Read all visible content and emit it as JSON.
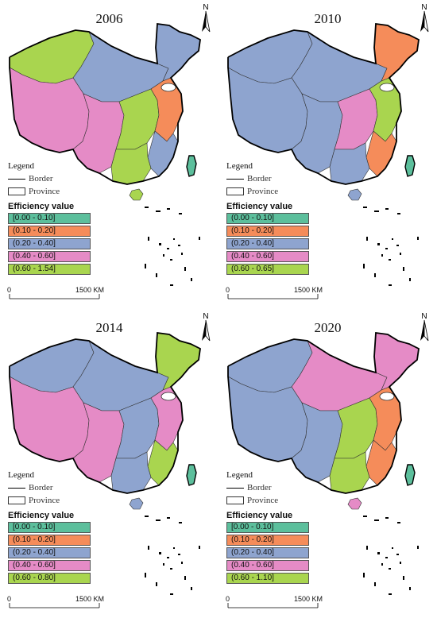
{
  "north_label": "N",
  "legend": {
    "title": "Legend",
    "border_label": "Border",
    "province_label": "Province"
  },
  "efficiency_title": "Efficiency value",
  "scale": {
    "start": "0",
    "end": "1500 KM"
  },
  "colors": {
    "teal": "#5cbf9c",
    "orange": "#f58c5a",
    "blue": "#8ea4cf",
    "pink": "#e58bc6",
    "green": "#a9d54f"
  },
  "maps": [
    {
      "year": "2006",
      "classes": [
        {
          "label": "[0.00 - 0.10]",
          "color": "#5cbf9c"
        },
        {
          "label": "(0.10 - 0.20]",
          "color": "#f58c5a"
        },
        {
          "label": "(0.20 - 0.40]",
          "color": "#8ea4cf"
        },
        {
          "label": "(0.40 - 0.60]",
          "color": "#e58bc6"
        },
        {
          "label": "(0.60 - 1.54]",
          "color": "#a9d54f"
        }
      ],
      "region_colors": {
        "northwest": "green",
        "north": "blue",
        "northeast": "blue",
        "tibet": "pink",
        "southwest": "pink",
        "central": "green",
        "east": "orange",
        "southeast": "blue",
        "south": "green",
        "hainan": "green"
      }
    },
    {
      "year": "2010",
      "classes": [
        {
          "label": "(0.00 - 0.10]",
          "color": "#5cbf9c"
        },
        {
          "label": "(0.10 - 0.20]",
          "color": "#f58c5a"
        },
        {
          "label": "(0.20 - 0.40]",
          "color": "#8ea4cf"
        },
        {
          "label": "(0.40 - 0.60]",
          "color": "#e58bc6"
        },
        {
          "label": "(0.60 - 0.65]",
          "color": "#a9d54f"
        }
      ],
      "region_colors": {
        "northwest": "blue",
        "north": "blue",
        "northeast": "orange",
        "tibet": "blue",
        "southwest": "blue",
        "central": "pink",
        "east": "green",
        "southeast": "orange",
        "south": "blue",
        "hainan": "blue"
      }
    },
    {
      "year": "2014",
      "classes": [
        {
          "label": "[0.00 - 0.10]",
          "color": "#5cbf9c"
        },
        {
          "label": "(0.10 - 0.20]",
          "color": "#f58c5a"
        },
        {
          "label": "(0.20 - 0.40]",
          "color": "#8ea4cf"
        },
        {
          "label": "(0.40 - 0.60]",
          "color": "#e58bc6"
        },
        {
          "label": "(0.60 - 0.80]",
          "color": "#a9d54f"
        }
      ],
      "region_colors": {
        "northwest": "blue",
        "north": "blue",
        "northeast": "green",
        "tibet": "pink",
        "southwest": "pink",
        "central": "blue",
        "east": "pink",
        "southeast": "green",
        "south": "blue",
        "hainan": "blue"
      }
    },
    {
      "year": "2020",
      "classes": [
        {
          "label": "[0.00 - 0.10]",
          "color": "#5cbf9c"
        },
        {
          "label": "(0.10 - 0.20]",
          "color": "#f58c5a"
        },
        {
          "label": "(0.20 - 0.40]",
          "color": "#8ea4cf"
        },
        {
          "label": "(0.40 - 0.60]",
          "color": "#e58bc6"
        },
        {
          "label": "(0.60 - 1.10]",
          "color": "#a9d54f"
        }
      ],
      "region_colors": {
        "northwest": "blue",
        "north": "pink",
        "northeast": "pink",
        "tibet": "blue",
        "southwest": "blue",
        "central": "green",
        "east": "orange",
        "southeast": "orange",
        "south": "green",
        "hainan": "pink"
      }
    }
  ]
}
